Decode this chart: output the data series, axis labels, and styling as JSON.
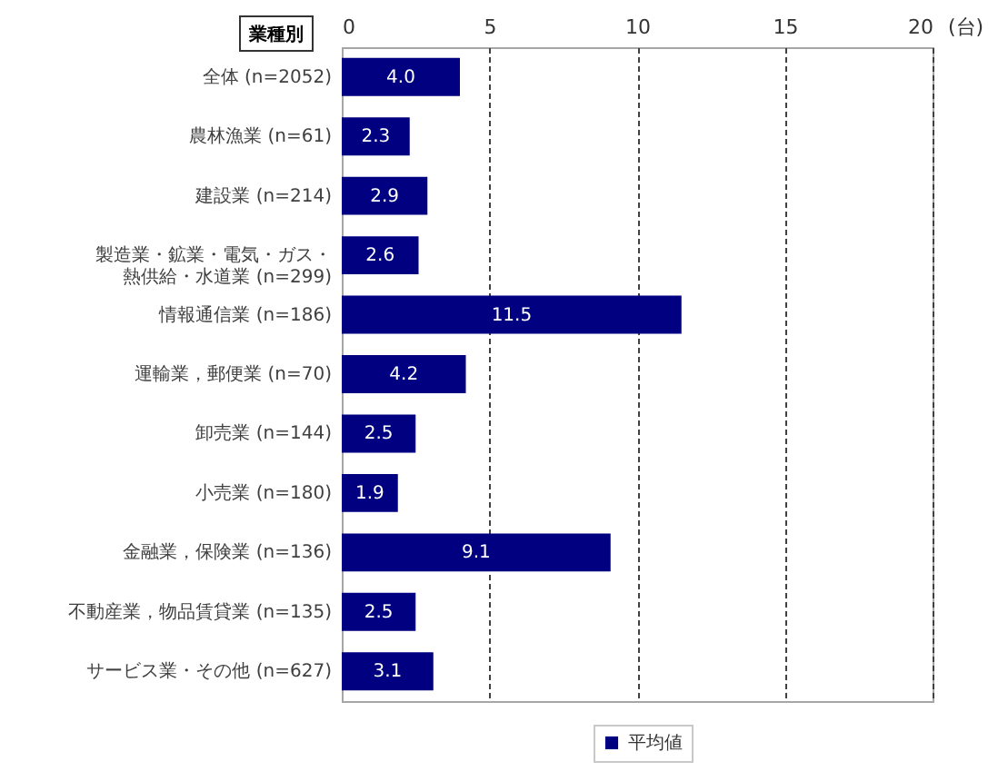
{
  "chart_data": {
    "type": "bar",
    "orientation": "horizontal",
    "ylabel": "業種別",
    "xlabel": "(台)",
    "categories": [
      "全体 (n=2052)",
      "農林漁業 (n=61)",
      "建設業 (n=214)",
      "製造業・鉱業・電気・ガス・熱供給・水道業 (n=299)",
      "情報通信業 (n=186)",
      "運輸業，郵便業 (n=70)",
      "卸売業 (n=144)",
      "小売業 (n=180)",
      "金融業，保険業 (n=136)",
      "不動産業，物品賃貸業 (n=135)",
      "サービス業・その他 (n=627)"
    ],
    "series": [
      {
        "name": "平均値",
        "color": "#000080",
        "values": [
          4.0,
          2.3,
          2.9,
          2.6,
          11.5,
          4.2,
          2.5,
          1.9,
          9.1,
          2.5,
          3.1
        ],
        "value_labels": [
          "4.0",
          "2.3",
          "2.9",
          "2.6",
          "11.5",
          "4.2",
          "2.5",
          "1.9",
          "9.1",
          "2.5",
          "3.1"
        ]
      }
    ],
    "xlim": [
      0,
      20
    ],
    "xticks": [
      0,
      5,
      10,
      15,
      20
    ],
    "grid": "x",
    "legend": "bottom"
  }
}
